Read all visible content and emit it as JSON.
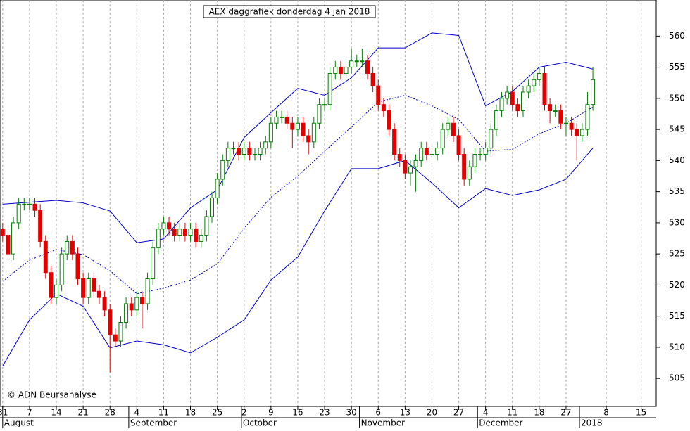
{
  "chart_data": {
    "type": "candlestick",
    "title": "AEX daggrafiek donderdag 4 jan 2018",
    "credit": "© ADN Beursanalyse",
    "ylim": [
      500.5,
      565.8
    ],
    "yticks": [
      505,
      510,
      515,
      520,
      525,
      530,
      535,
      540,
      545,
      550,
      555,
      560
    ],
    "xlim": [
      -0.5,
      121.8
    ],
    "grid": true,
    "xticks": [
      {
        "value": 0,
        "label": "31"
      },
      {
        "value": 5,
        "label": "7"
      },
      {
        "value": 10,
        "label": "14"
      },
      {
        "value": 15,
        "label": "21"
      },
      {
        "value": 20,
        "label": "28"
      },
      {
        "value": 25,
        "label": "4"
      },
      {
        "value": 30,
        "label": "11"
      },
      {
        "value": 35,
        "label": "18"
      },
      {
        "value": 40,
        "label": "25"
      },
      {
        "value": 45,
        "label": "2"
      },
      {
        "value": 50,
        "label": "9"
      },
      {
        "value": 55,
        "label": "16"
      },
      {
        "value": 60,
        "label": "23"
      },
      {
        "value": 65,
        "label": "30"
      },
      {
        "value": 70,
        "label": "6"
      },
      {
        "value": 75,
        "label": "13"
      },
      {
        "value": 80,
        "label": "20"
      },
      {
        "value": 85,
        "label": "27"
      },
      {
        "value": 90,
        "label": "4"
      },
      {
        "value": 95,
        "label": "11"
      },
      {
        "value": 100,
        "label": "18"
      },
      {
        "value": 105,
        "label": "27"
      },
      {
        "value": 112.5,
        "label": "8"
      },
      {
        "value": 119,
        "label": "15"
      }
    ],
    "month_ticks": [
      {
        "value": 0,
        "label": "August"
      },
      {
        "value": 23.5,
        "label": "September"
      },
      {
        "value": 44.5,
        "label": "October"
      },
      {
        "value": 66.5,
        "label": "November"
      },
      {
        "value": 88.5,
        "label": "December"
      },
      {
        "value": 107.5,
        "label": "2018"
      }
    ],
    "candles": {
      "up_color": "#008000",
      "down_color": "#e00000",
      "open": [
        529,
        528,
        525,
        530,
        533,
        533,
        533,
        532,
        527,
        522,
        518,
        520,
        525,
        527,
        525,
        521,
        518,
        521,
        519,
        518,
        516,
        512,
        511,
        514,
        517,
        516,
        518,
        517,
        521,
        526,
        529,
        530,
        529,
        528,
        529,
        528,
        529,
        527,
        528,
        531,
        534,
        537,
        540,
        542,
        542,
        541,
        542,
        541,
        541,
        542,
        543,
        546,
        547,
        547,
        546,
        545,
        546,
        544,
        543,
        546,
        549,
        549,
        554,
        555,
        554,
        555,
        556,
        556,
        556,
        554,
        552,
        549,
        548,
        545,
        541,
        540,
        538,
        539,
        540,
        542,
        541,
        541,
        542,
        545,
        546,
        544,
        541,
        537,
        539,
        541,
        541,
        542,
        545,
        548,
        550,
        551,
        549,
        548,
        551,
        552,
        553,
        554,
        549,
        548,
        548,
        546,
        546,
        545,
        544,
        545,
        549
      ],
      "high": [
        530,
        529,
        531,
        534,
        534,
        534,
        534,
        533,
        528,
        523,
        521,
        526,
        528,
        528,
        526,
        522,
        522,
        522,
        520,
        519,
        517,
        513,
        515,
        518,
        518,
        519,
        519,
        522,
        527,
        530,
        531,
        531,
        530,
        530,
        530,
        530,
        530,
        529,
        532,
        535,
        538,
        541,
        543,
        543,
        543,
        543,
        543,
        542,
        543,
        544,
        547,
        548,
        548,
        548,
        547,
        547,
        547,
        545,
        547,
        550,
        550,
        555,
        556,
        556,
        556,
        558,
        557,
        558,
        557,
        555,
        553,
        550,
        549,
        546,
        542,
        541,
        540,
        541,
        543,
        543,
        542,
        543,
        546,
        547,
        547,
        545,
        542,
        540,
        542,
        542,
        543,
        546,
        549,
        551,
        552,
        552,
        550,
        552,
        553,
        554,
        555,
        555,
        550,
        549,
        549,
        547,
        547,
        546,
        546,
        551,
        555
      ],
      "low": [
        527,
        524,
        524,
        529,
        532,
        532,
        531,
        526,
        521,
        517,
        517,
        519,
        524,
        524,
        520,
        517,
        517,
        518,
        517,
        515,
        506,
        510,
        510,
        513,
        515,
        515,
        513,
        516,
        520,
        525,
        528,
        528,
        527,
        527,
        527,
        527,
        526,
        526,
        527,
        530,
        533,
        536,
        539,
        541,
        540,
        540,
        540,
        540,
        540,
        541,
        542,
        545,
        546,
        545,
        542,
        544,
        543,
        541,
        542,
        545,
        548,
        548,
        553,
        553,
        553,
        554,
        555,
        555,
        553,
        551,
        548,
        547,
        544,
        540,
        539,
        537,
        536,
        535,
        539,
        540,
        540,
        540,
        541,
        544,
        543,
        540,
        536,
        536,
        538,
        540,
        540,
        541,
        544,
        547,
        549,
        548,
        547,
        547,
        550,
        551,
        552,
        548,
        546,
        547,
        545,
        544,
        544,
        540,
        543,
        544,
        548
      ],
      "close": [
        528,
        525,
        530,
        533,
        533,
        533,
        532,
        527,
        522,
        518,
        520,
        525,
        527,
        525,
        521,
        518,
        521,
        519,
        518,
        516,
        512,
        511,
        514,
        517,
        516,
        518,
        517,
        521,
        526,
        529,
        530,
        529,
        528,
        529,
        528,
        529,
        527,
        528,
        531,
        534,
        537,
        540,
        542,
        542,
        541,
        542,
        541,
        541,
        542,
        543,
        546,
        547,
        547,
        546,
        545,
        546,
        544,
        543,
        546,
        549,
        549,
        554,
        555,
        554,
        555,
        556,
        556,
        556,
        554,
        552,
        549,
        548,
        545,
        541,
        540,
        538,
        539,
        540,
        542,
        541,
        541,
        542,
        545,
        546,
        544,
        541,
        537,
        539,
        541,
        541,
        542,
        545,
        548,
        550,
        551,
        549,
        548,
        551,
        552,
        553,
        554,
        549,
        548,
        548,
        546,
        546,
        545,
        544,
        545,
        549,
        553
      ]
    },
    "band_x": [
      0,
      5,
      10,
      15,
      20,
      25,
      30,
      35,
      40,
      45,
      50,
      55,
      60,
      65,
      70,
      75,
      80,
      85,
      90,
      95,
      100,
      105,
      110
    ],
    "bands": [
      {
        "color": "#0000cc",
        "dashed": false,
        "values": [
          533,
          533.3,
          533.6,
          533.2,
          531.9,
          526.8,
          527.4,
          532.4,
          535.3,
          543.7,
          547.7,
          551.6,
          550.5,
          553.3,
          558.1,
          558.1,
          560.5,
          560.1,
          548.8,
          551.1,
          555,
          555.8,
          554.7
        ]
      },
      {
        "color": "#0000cc",
        "dashed": true,
        "values": [
          520.6,
          524,
          525.7,
          524.9,
          522.3,
          518.6,
          519.5,
          520.8,
          523.4,
          529.1,
          534.1,
          537.5,
          541.5,
          545.4,
          549.4,
          550.5,
          548.8,
          546.6,
          541.5,
          541.8,
          544.3,
          546,
          548.6
        ]
      },
      {
        "color": "#0000cc",
        "dashed": false,
        "values": [
          507,
          514.4,
          518.6,
          516.6,
          509.9,
          511,
          510.4,
          509.1,
          511.6,
          514.4,
          520.8,
          524.5,
          531.9,
          538.7,
          538.7,
          540,
          536.4,
          532.4,
          535.5,
          534.4,
          535.3,
          537,
          542
        ]
      }
    ]
  }
}
